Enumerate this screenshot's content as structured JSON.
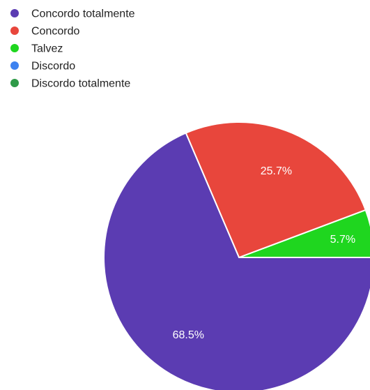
{
  "chart_data": {
    "type": "pie",
    "title": "",
    "legend_position": "top-left",
    "categories": [
      "Concordo totalmente",
      "Concordo",
      "Talvez",
      "Discordo",
      "Discordo totalmente"
    ],
    "values": [
      68.5,
      25.7,
      5.7,
      0,
      0
    ],
    "labels": [
      "68.5%",
      "25.7%",
      "5.7%",
      "",
      ""
    ],
    "colors": [
      "#5b3cb2",
      "#e8463c",
      "#1fd61f",
      "#3d82f0",
      "#2f9a48"
    ]
  }
}
